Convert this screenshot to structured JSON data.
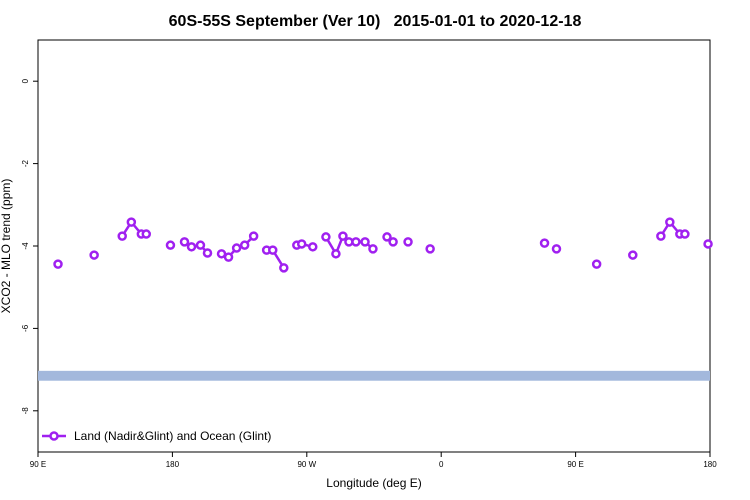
{
  "chart_data": {
    "type": "line",
    "title": "60S-55S September (Ver 10)   2015-01-01 to 2020-12-18",
    "x_label": "Longitude (deg E)",
    "y_label": "XCO2 - MLO trend (ppm)",
    "xlim": [
      90,
      540
    ],
    "xticks": [
      {
        "value": 90,
        "label": "90 E"
      },
      180,
      {
        "value": 270,
        "label": "90 W"
      },
      {
        "value": 360,
        "label": "0"
      },
      {
        "value": 450,
        "label": "90 E"
      },
      {
        "value": 540,
        "label": "180"
      }
    ],
    "ylim": [
      -9,
      1
    ],
    "yticks": [
      0,
      -2,
      -4,
      -6,
      -8
    ],
    "band": {
      "color": "#a3b8dc",
      "range": [
        -7.27,
        -7.03
      ]
    },
    "legend": "bottom-left",
    "series": [
      {
        "name": "Land (Nadir&Glint) and Ocean (Glint)",
        "color": "#a020f0",
        "x": [
          103.4,
          null,
          127.6,
          null,
          146.4,
          152.5,
          159.2,
          162.5,
          null,
          178.7,
          null,
          188.1,
          192.8,
          198.8,
          203.5,
          null,
          212.9,
          217.6,
          223.0,
          228.4,
          234.4,
          null,
          243.1,
          247.2,
          254.6,
          null,
          263.3,
          266.6,
          274.0,
          null,
          282.8,
          289.5,
          294.2,
          298.2,
          302.9,
          309.0,
          314.3,
          null,
          323.7,
          327.8,
          null,
          337.8,
          null,
          352.6,
          null,
          429.2,
          null,
          437.2,
          null,
          464.1,
          null,
          488.3,
          null,
          507.1,
          513.1,
          519.8,
          523.2,
          null,
          538.7
        ],
        "values": [
          -4.44,
          null,
          -4.22,
          null,
          -3.76,
          -3.42,
          -3.71,
          -3.71,
          null,
          -3.98,
          null,
          -3.9,
          -4.02,
          -3.98,
          -4.17,
          null,
          -4.19,
          -4.27,
          -4.05,
          -3.98,
          -3.76,
          null,
          -4.1,
          -4.1,
          -4.53,
          null,
          -3.98,
          -3.95,
          -4.02,
          null,
          -3.78,
          -4.19,
          -3.76,
          -3.9,
          -3.9,
          -3.9,
          -4.07,
          null,
          -3.78,
          -3.9,
          null,
          -3.9,
          null,
          -4.07,
          null,
          -3.93,
          null,
          -4.07,
          null,
          -4.44,
          null,
          -4.22,
          null,
          -3.76,
          -3.42,
          -3.71,
          -3.71,
          null,
          -3.95
        ]
      }
    ]
  }
}
